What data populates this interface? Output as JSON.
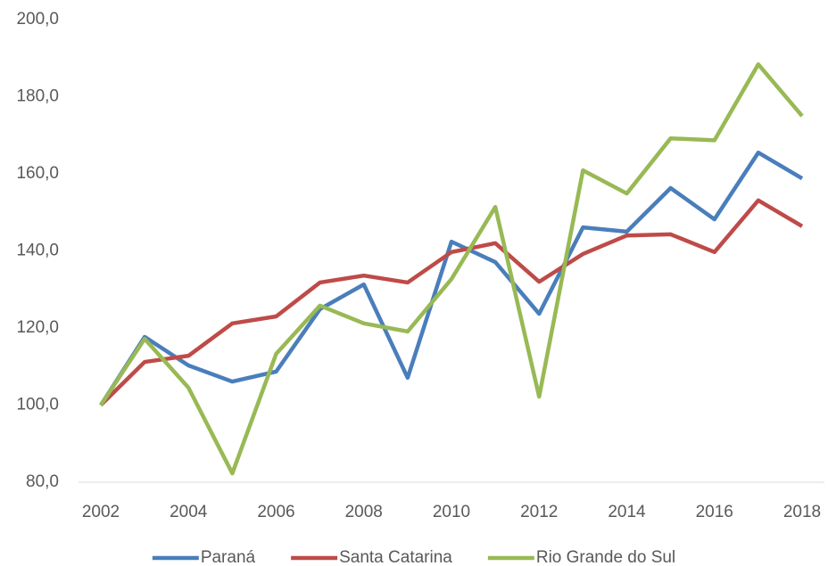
{
  "chart_data": {
    "type": "line",
    "x": [
      2002,
      2003,
      2004,
      2005,
      2006,
      2007,
      2008,
      2009,
      2010,
      2011,
      2012,
      2013,
      2014,
      2015,
      2016,
      2017,
      2018
    ],
    "series": [
      {
        "name": "Paraná",
        "color": "#4a7ebb",
        "values": [
          100,
          117.7,
          110.3,
          106.1,
          108.7,
          124.9,
          131.3,
          107.1,
          142.4,
          137.1,
          123.7,
          146.1,
          145.0,
          156.3,
          148.2,
          165.5,
          158.8
        ]
      },
      {
        "name": "Santa Catarina",
        "color": "#be4b48",
        "values": [
          100,
          111.2,
          112.8,
          121.2,
          123.0,
          131.8,
          133.6,
          131.8,
          139.7,
          142.0,
          132.0,
          139.2,
          144.0,
          144.3,
          139.7,
          153.1,
          146.4
        ]
      },
      {
        "name": "Rio Grande do Sul",
        "color": "#98b954",
        "values": [
          100,
          117.2,
          104.5,
          82.3,
          113.3,
          125.8,
          121.2,
          119.1,
          132.7,
          151.4,
          102.2,
          160.9,
          154.9,
          169.2,
          168.7,
          188.4,
          175.0
        ]
      }
    ],
    "xlim": [
      2002,
      2018
    ],
    "xticks": [
      2002,
      2004,
      2006,
      2008,
      2010,
      2012,
      2014,
      2016,
      2018
    ],
    "ylim": [
      80,
      200
    ],
    "yticks": [
      {
        "value": 80,
        "label": "80,0"
      },
      {
        "value": 100,
        "label": "100,0"
      },
      {
        "value": 120,
        "label": "120,0"
      },
      {
        "value": 140,
        "label": "140,0"
      },
      {
        "value": 160,
        "label": "160,0"
      },
      {
        "value": 180,
        "label": "180,0"
      },
      {
        "value": 200,
        "label": "200,0"
      }
    ],
    "grid": false,
    "legend": "bottom"
  }
}
